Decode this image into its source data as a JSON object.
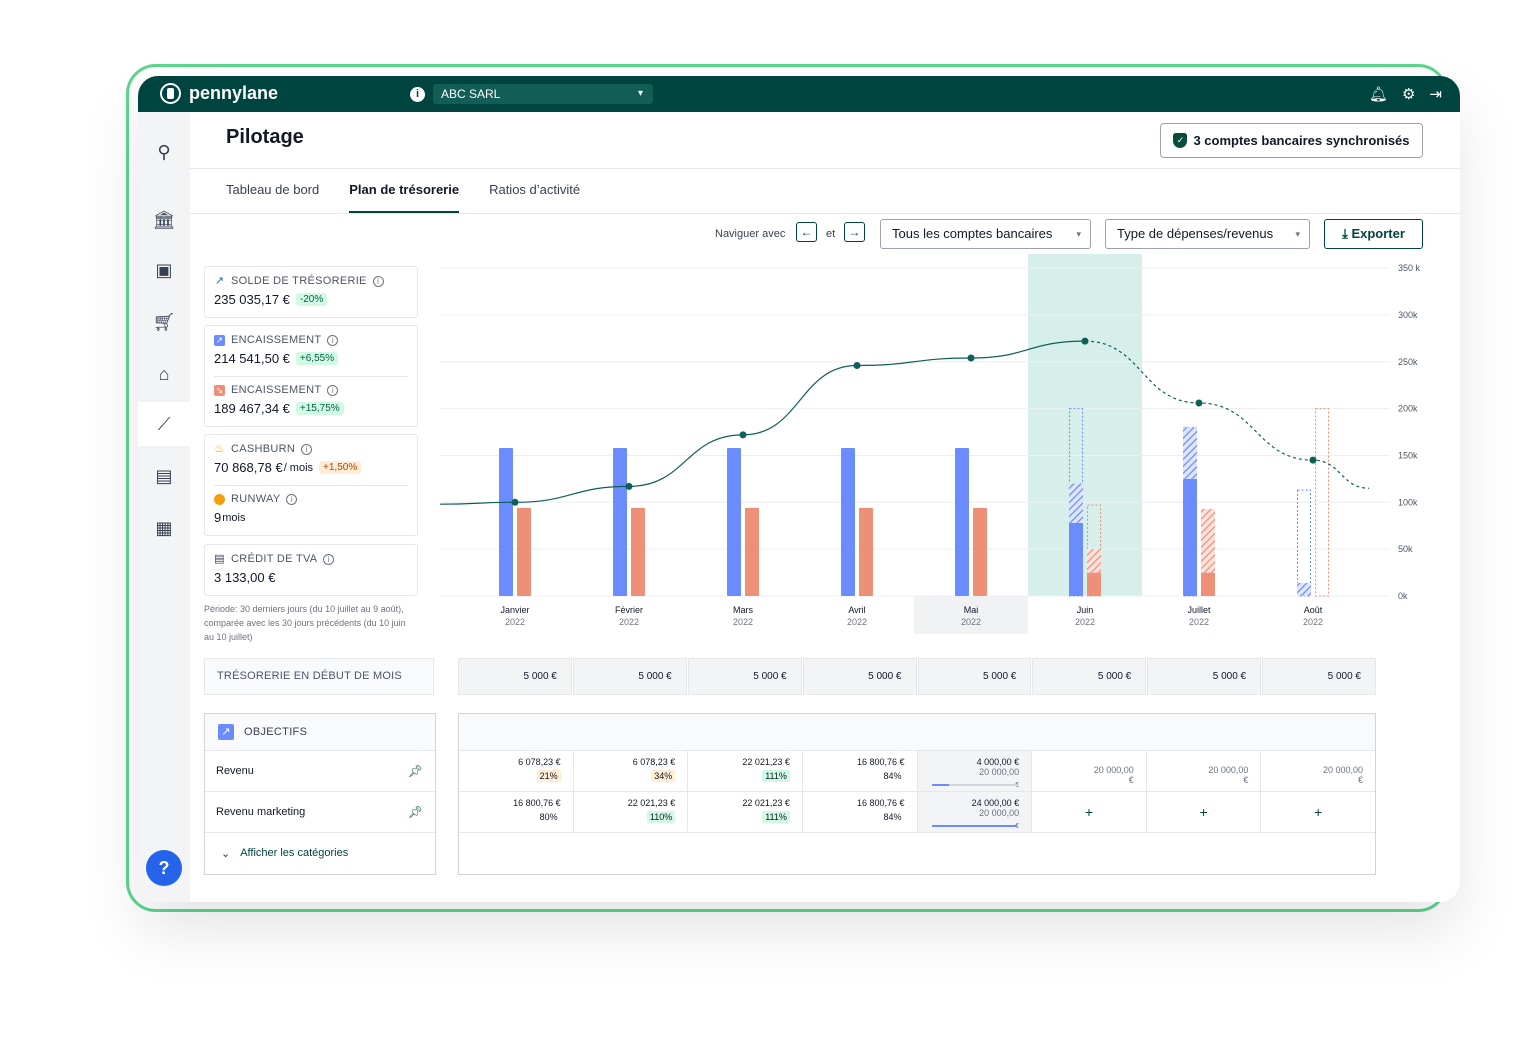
{
  "app": {
    "brand": "pennylane",
    "company": "ABC SARL"
  },
  "topbar_icons": [
    "bell-icon",
    "gear-icon",
    "logout-icon"
  ],
  "sidebar": {
    "icons": [
      "search-icon",
      "bank-icon",
      "wallet-icon",
      "cart-icon",
      "store-icon",
      "chart-line-icon",
      "folder-user-icon",
      "spreadsheet-icon"
    ],
    "active": "chart-line-icon",
    "help_label": "?"
  },
  "header": {
    "title": "Pilotage",
    "sync_label": "3 comptes bancaires synchronisés"
  },
  "tabs": [
    {
      "label": "Tableau de bord",
      "active": false
    },
    {
      "label": "Plan de trésorerie",
      "active": true
    },
    {
      "label": "Ratios d’activité",
      "active": false
    }
  ],
  "toolbar": {
    "nav_label": "Naviguer avec",
    "prev_arrow": "←",
    "and_label": "et",
    "next_arrow": "→",
    "accounts_select": "Tous les comptes bancaires",
    "type_select": "Type de dépenses/revenus",
    "export_label": "Exporter"
  },
  "kpis": {
    "solde": {
      "label": "SOLDE DE TRÉSORERIE",
      "value": "235 035,17 €",
      "badge": "-20%"
    },
    "enc1": {
      "label": "ENCAISSEMENT",
      "value": "214 541,50 €",
      "badge": "+6,55%"
    },
    "enc2": {
      "label": "ENCAISSEMENT",
      "value": "189 467,34 €",
      "badge": "+15,75%"
    },
    "cashburn": {
      "label": "CASHBURN",
      "value": "70 868,78 €",
      "unit": "/ mois",
      "badge": "+1,50%"
    },
    "runway": {
      "label": "RUNWAY",
      "value": "9",
      "unit": "mois"
    },
    "tva": {
      "label": "CRÉDIT DE TVA",
      "value": "3 133,00 €"
    },
    "period_note": "Période: 30 derniers jours (du 10 juillet au 9 août), comparée avec les 30 jours précédents (du 10 juin au 10 juillet)"
  },
  "chart_data": {
    "type": "bar",
    "categories": [
      "Janvier",
      "Février",
      "Mars",
      "Avril",
      "Mai",
      "Juin",
      "Juillet",
      "Août"
    ],
    "year_labels": [
      "2022",
      "2022",
      "2022",
      "2022",
      "2022",
      "2022",
      "2022",
      "2022"
    ],
    "ytick_labels": [
      "0k",
      "50k",
      "100k",
      "150k",
      "200k",
      "250k",
      "300k",
      "350 k"
    ],
    "yticks": [
      0,
      50000,
      100000,
      150000,
      200000,
      250000,
      300000,
      350000
    ],
    "ylim": [
      0,
      365000
    ],
    "highlighted_category": "Juin",
    "current_category": "Mai",
    "series": [
      {
        "kind": "bar",
        "color": "#6b8cff",
        "actual": [
          158000,
          158000,
          158000,
          158000,
          158000,
          78000,
          125000,
          0
        ],
        "forecast_filled": [
          0,
          0,
          0,
          0,
          0,
          42000,
          55000,
          14000
        ],
        "forecast_outline": [
          0,
          0,
          0,
          0,
          0,
          200000,
          180000,
          113000
        ]
      },
      {
        "kind": "bar",
        "color": "#ee8f78",
        "actual": [
          94000,
          94000,
          94000,
          94000,
          94000,
          25000,
          25000,
          0
        ],
        "forecast_filled": [
          0,
          0,
          0,
          0,
          0,
          25000,
          68000,
          0
        ],
        "forecast_outline": [
          0,
          0,
          0,
          0,
          0,
          97000,
          0,
          200000
        ]
      },
      {
        "kind": "line",
        "color": "#0f5f59",
        "values": [
          100000,
          117000,
          172000,
          246000,
          254000,
          272000,
          206000,
          145000
        ],
        "forecast_from": "Juin",
        "start_value": 98000,
        "end_value": 115000
      }
    ],
    "grid": true
  },
  "treso": {
    "label": "TRÉSORERIE EN DÉBUT DE MOIS",
    "values": [
      "5 000 €",
      "5 000 €",
      "5 000 €",
      "5 000 €",
      "5 000 €",
      "5 000 €",
      "5 000 €",
      "5 000 €"
    ]
  },
  "objectifs": {
    "title": "OBJECTIFS",
    "rows": [
      {
        "label": "Revenu",
        "cells": [
          {
            "amount": "6 078,23 €",
            "pct": "21%",
            "status": "warn"
          },
          {
            "amount": "6 078,23 €",
            "pct": "34%",
            "status": "warn"
          },
          {
            "amount": "22 021,23 €",
            "pct": "111%",
            "status": "ok"
          },
          {
            "amount": "16 800,76 €",
            "pct": "84%",
            "status": "none"
          },
          {
            "amount": "4 000,00 €",
            "target": "20 000,00",
            "unit": "€",
            "progress": 0.2,
            "current": true
          },
          {
            "target": "20 000,00",
            "unit": "€",
            "future": true
          },
          {
            "target": "20 000,00",
            "unit": "€",
            "future": true
          },
          {
            "target": "20 000,00",
            "unit": "€",
            "future": true
          }
        ]
      },
      {
        "label": "Revenu marketing",
        "cells": [
          {
            "amount": "16 800,76 €",
            "pct": "80%",
            "status": "none"
          },
          {
            "amount": "22 021,23 €",
            "pct": "110%",
            "status": "ok"
          },
          {
            "amount": "22 021,23 €",
            "pct": "111%",
            "status": "ok"
          },
          {
            "amount": "16 800,76 €",
            "pct": "84%",
            "status": "none"
          },
          {
            "amount": "24 000,00 €",
            "target": "20 000,00",
            "unit": "€",
            "progress": 1.0,
            "current": true
          },
          {
            "plus": "+"
          },
          {
            "plus": "+"
          },
          {
            "plus": "+"
          }
        ]
      }
    ],
    "show_categories": "Afficher les catégories"
  }
}
